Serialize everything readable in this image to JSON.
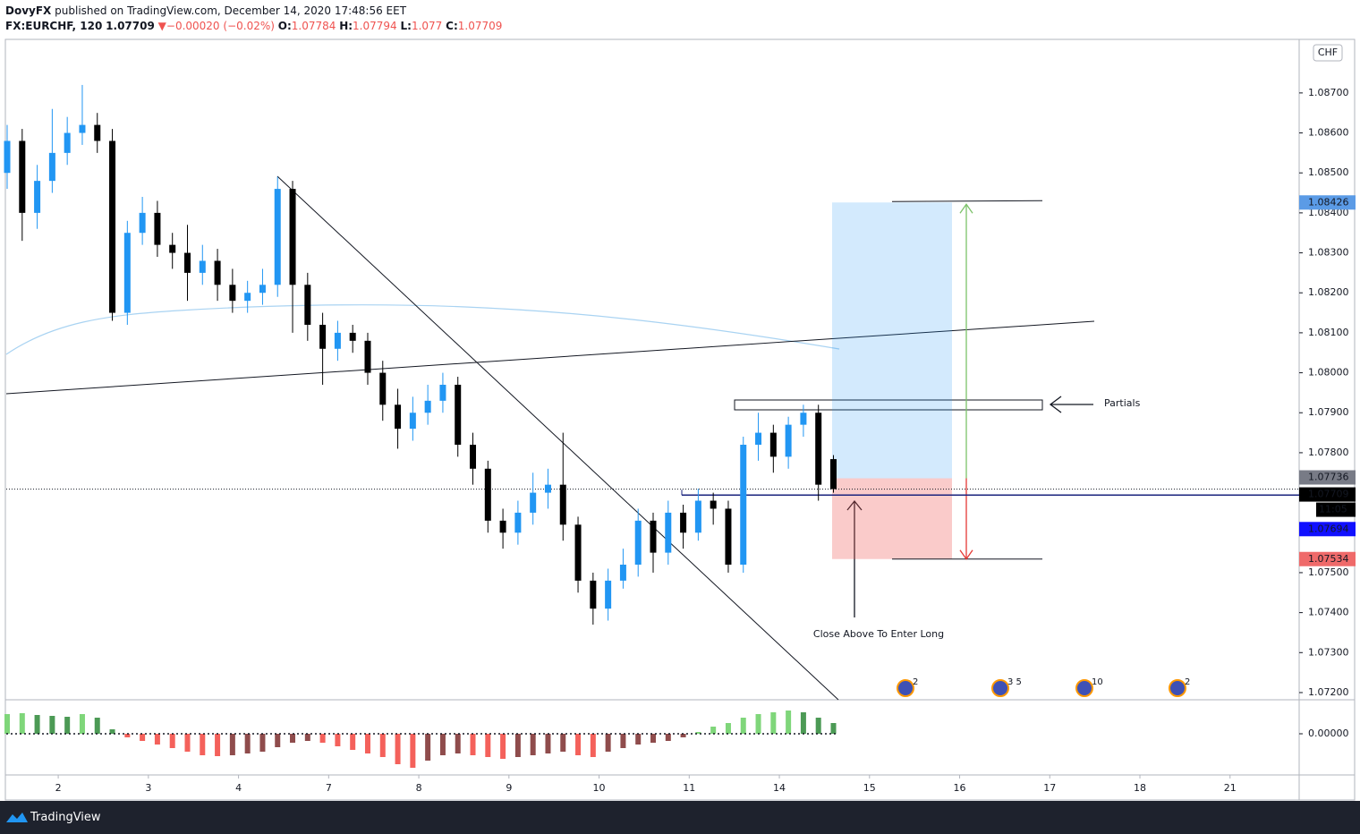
{
  "header": {
    "publisher": "DovyFX",
    "published": "published on TradingView.com, December 14, 2020 17:48:56 EET",
    "symbol": "FX:EURCHF, 120",
    "change_arrow": "▼",
    "change": "−0.00020 (−0.02%)",
    "o": "O:",
    "h": "H:",
    "l": "L:",
    "c": "C:"
  },
  "currency": "CHF",
  "countdown": "11:05",
  "annotations": {
    "partials": "Partials",
    "entry_note": "Close Above To Enter Long"
  },
  "position": {
    "target": 1.08426,
    "entry": 1.07736,
    "stop": 1.07534,
    "line": 1.07694
  },
  "events": [
    "2",
    "3 5",
    "10",
    "2"
  ],
  "footer": "TradingView",
  "chart_data": [
    {
      "type": "candlestick",
      "up_color": "#2196f3",
      "down_color": "#000000",
      "x": [
        0,
        1,
        2,
        3,
        4,
        5,
        6,
        7,
        8,
        9,
        10,
        11,
        12,
        13,
        14,
        15,
        16,
        17,
        18,
        19,
        20,
        21,
        22,
        23,
        24,
        25,
        26,
        27,
        28,
        29,
        30,
        31,
        32,
        33,
        34,
        35,
        36,
        37,
        38,
        39,
        40,
        41,
        42,
        43,
        44,
        45,
        46,
        47,
        48,
        49,
        50,
        51,
        52,
        53,
        54,
        55
      ],
      "open": [
        1.085,
        1.0858,
        1.084,
        1.0848,
        1.0855,
        1.086,
        1.0862,
        1.0858,
        1.0815,
        1.0835,
        1.084,
        1.0832,
        1.083,
        1.0825,
        1.0828,
        1.0822,
        1.0818,
        1.082,
        1.0822,
        1.0846,
        1.0822,
        1.0812,
        1.0806,
        1.081,
        1.0808,
        1.08,
        1.0792,
        1.0786,
        1.079,
        1.0793,
        1.0797,
        1.0782,
        1.0776,
        1.0763,
        1.076,
        1.0765,
        1.077,
        1.0772,
        1.0762,
        1.0748,
        1.0741,
        1.0748,
        1.0752,
        1.0763,
        1.0755,
        1.0765,
        1.076,
        1.0768,
        1.0766,
        1.0752,
        1.0782,
        1.0785,
        1.0779,
        1.0787,
        1.079,
        1.07784
      ],
      "high": [
        1.0862,
        1.0861,
        1.0852,
        1.0866,
        1.0864,
        1.0872,
        1.0865,
        1.0861,
        1.0838,
        1.0844,
        1.0843,
        1.0835,
        1.0837,
        1.0832,
        1.0831,
        1.0826,
        1.0823,
        1.0826,
        1.0849,
        1.0848,
        1.0825,
        1.0815,
        1.0813,
        1.0812,
        1.081,
        1.0803,
        1.0796,
        1.0794,
        1.0797,
        1.08,
        1.0799,
        1.0785,
        1.0778,
        1.0766,
        1.0768,
        1.0775,
        1.0776,
        1.0785,
        1.0764,
        1.075,
        1.0751,
        1.0756,
        1.0766,
        1.0765,
        1.0768,
        1.0767,
        1.0771,
        1.077,
        1.0768,
        1.0784,
        1.079,
        1.0787,
        1.0789,
        1.0792,
        1.0792,
        1.07794
      ],
      "low": [
        1.0846,
        1.0833,
        1.0836,
        1.0845,
        1.0852,
        1.0857,
        1.0855,
        1.0813,
        1.0812,
        1.0832,
        1.0829,
        1.0826,
        1.0818,
        1.0822,
        1.0818,
        1.0815,
        1.0815,
        1.0817,
        1.0819,
        1.081,
        1.0808,
        1.0797,
        1.0803,
        1.0805,
        1.0797,
        1.0788,
        1.0781,
        1.0783,
        1.0787,
        1.079,
        1.0779,
        1.0772,
        1.076,
        1.0756,
        1.0757,
        1.0762,
        1.0766,
        1.0758,
        1.0745,
        1.0737,
        1.0738,
        1.0746,
        1.0749,
        1.075,
        1.0752,
        1.0756,
        1.0758,
        1.0762,
        1.075,
        1.075,
        1.0778,
        1.0775,
        1.0776,
        1.0784,
        1.0768,
        1.077
      ],
      "close": [
        1.0858,
        1.084,
        1.0848,
        1.0855,
        1.086,
        1.0862,
        1.0858,
        1.0815,
        1.0835,
        1.084,
        1.0832,
        1.083,
        1.0825,
        1.0828,
        1.0822,
        1.0818,
        1.082,
        1.0822,
        1.0846,
        1.0822,
        1.0812,
        1.0806,
        1.081,
        1.0808,
        1.08,
        1.0792,
        1.0786,
        1.079,
        1.0793,
        1.0797,
        1.0782,
        1.0776,
        1.0763,
        1.076,
        1.0765,
        1.077,
        1.0772,
        1.0762,
        1.0748,
        1.0741,
        1.0748,
        1.0752,
        1.0763,
        1.0755,
        1.0765,
        1.076,
        1.0768,
        1.0766,
        1.0752,
        1.0782,
        1.0785,
        1.0779,
        1.0787,
        1.079,
        1.0772,
        1.07709
      ],
      "xlim": [
        -0.06,
        86.0
      ],
      "xticks": [
        {
          "value": 3.4,
          "label": "2"
        },
        {
          "value": 9.4,
          "label": "3"
        },
        {
          "value": 15.4,
          "label": "4"
        },
        {
          "value": 21.4,
          "label": "7"
        },
        {
          "value": 27.4,
          "label": "8"
        },
        {
          "value": 33.4,
          "label": "9"
        },
        {
          "value": 39.4,
          "label": "10"
        },
        {
          "value": 45.4,
          "label": "11"
        },
        {
          "value": 51.4,
          "label": "14"
        },
        {
          "value": 57.4,
          "label": "15"
        },
        {
          "value": 63.4,
          "label": "16"
        },
        {
          "value": 69.4,
          "label": "17"
        },
        {
          "value": 75.4,
          "label": "18"
        },
        {
          "value": 81.4,
          "label": "21"
        }
      ],
      "ylim": [
        1.07182,
        1.08834
      ],
      "yticks": [
        {
          "value": 1.072,
          "label": "1.07200"
        },
        {
          "value": 1.073,
          "label": "1.07300"
        },
        {
          "value": 1.074,
          "label": "1.07400"
        },
        {
          "value": 1.075,
          "label": "1.07500"
        },
        {
          "value": 1.076,
          "label": "1.07600"
        },
        {
          "value": 1.077,
          "label": "1.07700"
        },
        {
          "value": 1.078,
          "label": "1.07800"
        },
        {
          "value": 1.079,
          "label": "1.07900"
        },
        {
          "value": 1.08,
          "label": "1.08000"
        },
        {
          "value": 1.081,
          "label": "1.08100"
        },
        {
          "value": 1.082,
          "label": "1.08200"
        },
        {
          "value": 1.083,
          "label": "1.08300"
        },
        {
          "value": 1.084,
          "label": "1.08400"
        },
        {
          "value": 1.085,
          "label": "1.08500"
        },
        {
          "value": 1.086,
          "label": "1.08600"
        },
        {
          "value": 1.087,
          "label": "1.08700"
        }
      ]
    },
    {
      "type": "bar",
      "x": [
        0,
        1,
        2,
        3,
        4,
        5,
        6,
        7,
        8,
        9,
        10,
        11,
        12,
        13,
        14,
        15,
        16,
        17,
        18,
        19,
        20,
        21,
        22,
        23,
        24,
        25,
        26,
        27,
        28,
        29,
        30,
        31,
        32,
        33,
        34,
        35,
        36,
        37,
        38,
        39,
        40,
        41,
        42,
        43,
        44,
        45,
        46,
        47,
        48,
        49,
        50,
        51,
        52,
        53,
        54,
        55
      ],
      "values": [
        0.0022,
        0.0023,
        0.0021,
        0.002,
        0.0019,
        0.0022,
        0.0018,
        0.0005,
        -0.0004,
        -0.0008,
        -0.0012,
        -0.0016,
        -0.002,
        -0.0024,
        -0.0025,
        -0.0024,
        -0.0022,
        -0.002,
        -0.0015,
        -0.001,
        -0.0008,
        -0.001,
        -0.0014,
        -0.0018,
        -0.0022,
        -0.0026,
        -0.0034,
        -0.0038,
        -0.003,
        -0.0024,
        -0.0022,
        -0.0024,
        -0.0026,
        -0.0028,
        -0.0026,
        -0.0024,
        -0.0022,
        -0.002,
        -0.0024,
        -0.0026,
        -0.002,
        -0.0016,
        -0.0012,
        -0.001,
        -0.0008,
        -0.0004,
        0.0002,
        0.0008,
        0.0012,
        0.0018,
        0.0022,
        0.0024,
        0.0026,
        0.0024,
        0.0018,
        0.0012
      ],
      "colors": {
        "up_growing": "#7fd67a",
        "up_falling": "#4c9a55",
        "down_growing": "#f4615b",
        "down_falling": "#8f4c4c"
      },
      "ylim": [
        -0.0046,
        0.0038
      ],
      "yticks": [
        {
          "value": 0,
          "label": "0.00000"
        }
      ]
    }
  ]
}
